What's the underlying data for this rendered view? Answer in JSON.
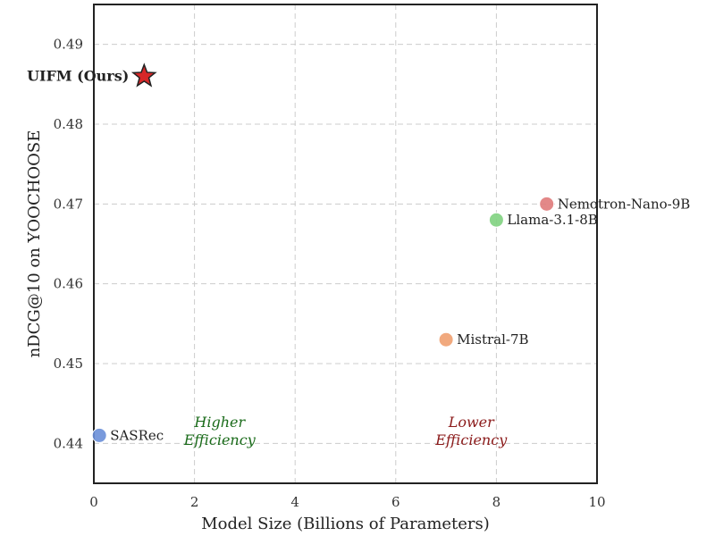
{
  "chart_data": {
    "type": "scatter",
    "title": "",
    "xlabel": "Model Size (Billions of Parameters)",
    "ylabel": "nDCG@10 on YOOCHOOSE",
    "xlim": [
      0,
      10
    ],
    "ylim": [
      0.435,
      0.495
    ],
    "xticks": [
      0,
      2,
      4,
      6,
      8,
      10
    ],
    "yticks": [
      0.44,
      0.45,
      0.46,
      0.47,
      0.48,
      0.49
    ],
    "grid": true,
    "points": [
      {
        "label": "UIFM (Ours)",
        "x": 1.0,
        "y": 0.486,
        "color": "#d62728",
        "marker": "star",
        "label_side": "left",
        "bold": true
      },
      {
        "label": "Nemotron-Nano-9B",
        "x": 9.0,
        "y": 0.47,
        "color": "#e07b7b",
        "marker": "circle",
        "label_side": "right"
      },
      {
        "label": "Llama-3.1-8B",
        "x": 8.0,
        "y": 0.468,
        "color": "#7fd17f",
        "marker": "circle",
        "label_side": "right"
      },
      {
        "label": "Mistral-7B",
        "x": 7.0,
        "y": 0.453,
        "color": "#f0a070",
        "marker": "circle",
        "label_side": "right"
      },
      {
        "label": "SASRec",
        "x": 0.11,
        "y": 0.441,
        "color": "#6a8fd8",
        "marker": "circle",
        "label_side": "right"
      }
    ],
    "annotations": [
      {
        "lines": [
          "Higher",
          "Efficiency"
        ],
        "x": 2.5,
        "y": 0.4415,
        "color": "#1a6b1a"
      },
      {
        "lines": [
          "Lower",
          "Efficiency"
        ],
        "x": 7.5,
        "y": 0.4415,
        "color": "#8b1a1a"
      }
    ]
  }
}
